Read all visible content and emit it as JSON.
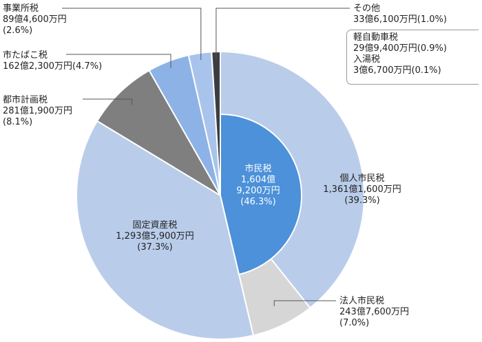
{
  "chart_data": {
    "type": "pie",
    "title": "",
    "unit": "億円",
    "center": {
      "name": "市民税",
      "amount_line1": "1,604億",
      "amount_line2": "9,200万円",
      "percent": "(46.3%)",
      "value": 1604.92,
      "color": "#4c91d9"
    },
    "slices": [
      {
        "key": "individual",
        "name": "個人市民税",
        "amount": "1,361億1,600万円",
        "percent": "(39.3%)",
        "value": 1361.16,
        "color": "#b9cdea"
      },
      {
        "key": "corporate",
        "name": "法人市民税",
        "amount": "243億7,600万円",
        "percent": "(7.0%)",
        "value": 243.76,
        "color": "#d6d6d6"
      },
      {
        "key": "property",
        "name": "固定資産税",
        "amount": "1,293億5,900万円",
        "percent": "(37.3%)",
        "value": 1293.59,
        "color": "#b9cdea"
      },
      {
        "key": "planning",
        "name": "都市計画税",
        "amount": "281億1,900万円",
        "percent": "(8.1%)",
        "value": 281.19,
        "color": "#7f7f7f"
      },
      {
        "key": "tobacco",
        "name": "市たばこ税",
        "amount": "162億2,300万円",
        "percent": "(4.7%)",
        "value": 162.23,
        "color": "#8db2e6"
      },
      {
        "key": "business",
        "name": "事業所税",
        "amount": "89億4,600万円",
        "percent": "(2.6%)",
        "value": 89.46,
        "color": "#a9c4ec"
      },
      {
        "key": "other",
        "name": "その他",
        "amount": "33億6,100万円",
        "percent": "(1.0%)",
        "value": 33.61,
        "color": "#3a3d42"
      }
    ],
    "other_breakdown": [
      {
        "name": "軽自動車税",
        "amount": "29億9,400万円",
        "percent": "(0.9%)"
      },
      {
        "name": "入湯税",
        "amount": "3億6,700万円",
        "percent": "(0.1%)"
      }
    ]
  }
}
